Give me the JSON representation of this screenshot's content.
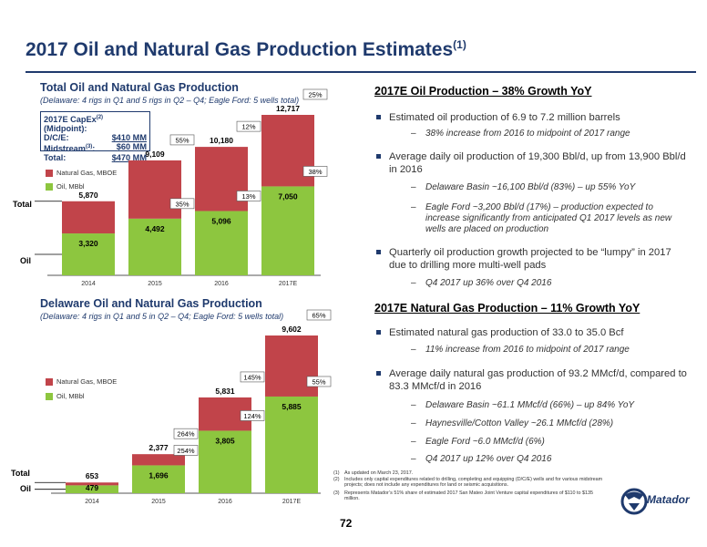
{
  "page": {
    "title": "2017 Oil and Natural Gas Production Estimates",
    "title_sup": "(1)",
    "page_number": "72"
  },
  "total_chart": {
    "title": "Total Oil and Natural Gas Production",
    "subtitle": "(Delaware: 4 rigs in Q1 and 5 rigs in Q2 – Q4; Eagle Ford: 5 wells total)",
    "capex": {
      "rows": [
        {
          "label": "2017E CapEx",
          "label_sup": "(2)",
          "label_tail": " (Midpoint):",
          "value": ""
        },
        {
          "label": "D/C/E:",
          "label_sup": "",
          "label_tail": "",
          "value": "$410 MM"
        },
        {
          "label": "Midstream",
          "label_sup": "(3)",
          "label_tail": ":",
          "value": "$60 MM"
        },
        {
          "label": "Total:",
          "label_sup": "",
          "label_tail": "",
          "value": "$470 MM"
        }
      ]
    },
    "legend": {
      "gas": "Natural Gas, MBOE",
      "oil": "Oil, MBbl"
    },
    "side_labels": {
      "total": "Total",
      "oil": "Oil"
    }
  },
  "delaware_chart": {
    "title": "Delaware Oil and Natural Gas Production",
    "subtitle": "(Delaware: 4 rigs in Q1 and 5 in Q2 – Q4; Eagle Ford: 5 wells total)",
    "legend": {
      "gas": "Natural Gas, MBOE",
      "oil": "Oil, MBbl"
    },
    "side_labels": {
      "total": "Total",
      "oil": "Oil"
    }
  },
  "chart_data": [
    {
      "type": "bar",
      "stacked": true,
      "title": "Total Oil and Natural Gas Production",
      "categories": [
        "2014",
        "2015",
        "2016",
        "2017E"
      ],
      "series": [
        {
          "name": "Oil, MBbl",
          "values": [
            3320,
            4492,
            5096,
            7050
          ],
          "color": "#8dc63f"
        },
        {
          "name": "Natural Gas, MBOE",
          "values": [
            2550,
            4617,
            5084,
            5667
          ],
          "color": "#c1444a"
        }
      ],
      "totals": [
        5870,
        9109,
        10180,
        12717
      ],
      "oil_labels": [
        "3,320",
        "4,492",
        "5,096",
        "7,050"
      ],
      "total_labels": [
        "5,870",
        "9,109",
        "10,180",
        "12,717"
      ],
      "oil_growth_labels": [
        "",
        "35%",
        "13%",
        "38%"
      ],
      "total_growth_labels": [
        "",
        "55%",
        "12%",
        "25%"
      ],
      "ylim": [
        0,
        13500
      ]
    },
    {
      "type": "bar",
      "stacked": true,
      "title": "Delaware Oil and Natural Gas Production",
      "categories": [
        "2014",
        "2015",
        "2016",
        "2017E"
      ],
      "series": [
        {
          "name": "Oil, MBbl",
          "values": [
            479,
            1696,
            3805,
            5885
          ],
          "color": "#8dc63f"
        },
        {
          "name": "Natural Gas, MBOE",
          "values": [
            174,
            681,
            2026,
            3717
          ],
          "color": "#c1444a"
        }
      ],
      "totals": [
        653,
        2377,
        5831,
        9602
      ],
      "oil_labels": [
        "479",
        "1,696",
        "3,805",
        "5,885"
      ],
      "total_labels": [
        "653",
        "2,377",
        "5,831",
        "9,602"
      ],
      "oil_growth_labels": [
        "",
        "254%",
        "124%",
        "55%"
      ],
      "total_growth_labels": [
        "",
        "264%",
        "145%",
        "65%"
      ],
      "ylim": [
        0,
        10200
      ]
    }
  ],
  "oil_section": {
    "heading": "2017E Oil Production – 38% Growth YoY",
    "bullets": [
      {
        "text": "Estimated oil production of 6.9 to 7.2 million barrels",
        "subs": [
          "38% increase from 2016 to midpoint of 2017 range"
        ]
      },
      {
        "text": "Average daily oil production of 19,300 Bbl/d, up from 13,900 Bbl/d in 2016",
        "subs": [
          "Delaware Basin ~16,100 Bbl/d (83%) – up 55% YoY",
          "Eagle Ford ~3,200 Bbl/d (17%) – production expected to increase significantly from anticipated Q1 2017 levels as new wells are placed on production"
        ]
      },
      {
        "text": "Quarterly oil production growth projected to be “lumpy” in 2017 due to drilling more multi-well pads",
        "subs": [
          "Q4 2017 up 36% over Q4 2016"
        ]
      }
    ]
  },
  "gas_section": {
    "heading": "2017E Natural Gas Production – 11% Growth YoY",
    "bullets": [
      {
        "text": "Estimated natural gas production of 33.0 to 35.0 Bcf",
        "subs": [
          "11% increase from 2016 to midpoint of 2017 range"
        ]
      },
      {
        "text": "Average daily natural gas production of 93.2 MMcf/d, compared to 83.3 MMcf/d in 2016",
        "subs": [
          "Delaware Basin ~61.1 MMcf/d (66%) – up 84% YoY",
          "Haynesville/Cotton Valley ~26.1 MMcf/d (28%)",
          "Eagle Ford ~6.0 MMcf/d (6%)",
          "Q4 2017 up 12% over Q4 2016"
        ]
      }
    ]
  },
  "footnotes": [
    {
      "n": "(1)",
      "text": "As updated on March 23, 2017."
    },
    {
      "n": "(2)",
      "text": "Includes only capital expenditures related to drilling, completing and equipping (D/C/E) wells and for various midstream projects; does not include any expenditures for land or seismic acquisitions."
    },
    {
      "n": "(3)",
      "text": "Represents Matador’s 51% share of estimated 2017 San Mateo Joint Venture capital expenditures of $110 to $135 million."
    }
  ],
  "logo": {
    "text": "Matador"
  },
  "colors": {
    "navy": "#1f3a6d",
    "oil": "#8dc63f",
    "gas": "#c1444a"
  }
}
